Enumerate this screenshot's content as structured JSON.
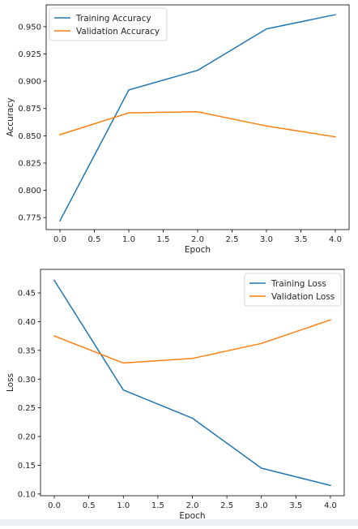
{
  "chart_data": [
    {
      "type": "line",
      "xlabel": "Epoch",
      "ylabel": "Accuracy",
      "x": [
        0,
        1,
        2,
        3,
        4
      ],
      "xlim": [
        -0.2,
        4.2
      ],
      "ylim": [
        0.764,
        0.97
      ],
      "xticks": [
        0.0,
        0.5,
        1.0,
        1.5,
        2.0,
        2.5,
        3.0,
        3.5,
        4.0
      ],
      "xtick_labels": [
        "0.0",
        "0.5",
        "1.0",
        "1.5",
        "2.0",
        "2.5",
        "3.0",
        "3.5",
        "4.0"
      ],
      "yticks": [
        0.775,
        0.8,
        0.825,
        0.85,
        0.875,
        0.9,
        0.925,
        0.95
      ],
      "ytick_labels": [
        "0.775",
        "0.800",
        "0.825",
        "0.850",
        "0.875",
        "0.900",
        "0.925",
        "0.950"
      ],
      "legend_position": "top-left",
      "grid": false,
      "series": [
        {
          "name": "Training Accuracy",
          "color": "#1f77b4",
          "values": [
            0.772,
            0.892,
            0.91,
            0.948,
            0.961
          ]
        },
        {
          "name": "Validation Accuracy",
          "color": "#ff7f0e",
          "values": [
            0.851,
            0.871,
            0.872,
            0.859,
            0.849
          ]
        }
      ]
    },
    {
      "type": "line",
      "xlabel": "Epoch",
      "ylabel": "Loss",
      "x": [
        0,
        1,
        2,
        3,
        4
      ],
      "xlim": [
        -0.2,
        4.2
      ],
      "ylim": [
        0.097,
        0.491
      ],
      "xticks": [
        0.0,
        0.5,
        1.0,
        1.5,
        2.0,
        2.5,
        3.0,
        3.5,
        4.0
      ],
      "xtick_labels": [
        "0.0",
        "0.5",
        "1.0",
        "1.5",
        "2.0",
        "2.5",
        "3.0",
        "3.5",
        "4.0"
      ],
      "yticks": [
        0.1,
        0.15,
        0.2,
        0.25,
        0.3,
        0.35,
        0.4,
        0.45
      ],
      "ytick_labels": [
        "0.10",
        "0.15",
        "0.20",
        "0.25",
        "0.30",
        "0.35",
        "0.40",
        "0.45"
      ],
      "legend_position": "top-right",
      "grid": false,
      "series": [
        {
          "name": "Training Loss",
          "color": "#1f77b4",
          "values": [
            0.472,
            0.281,
            0.232,
            0.145,
            0.115
          ]
        },
        {
          "name": "Validation Loss",
          "color": "#ff7f0e",
          "values": [
            0.375,
            0.328,
            0.336,
            0.362,
            0.403
          ]
        }
      ]
    }
  ]
}
